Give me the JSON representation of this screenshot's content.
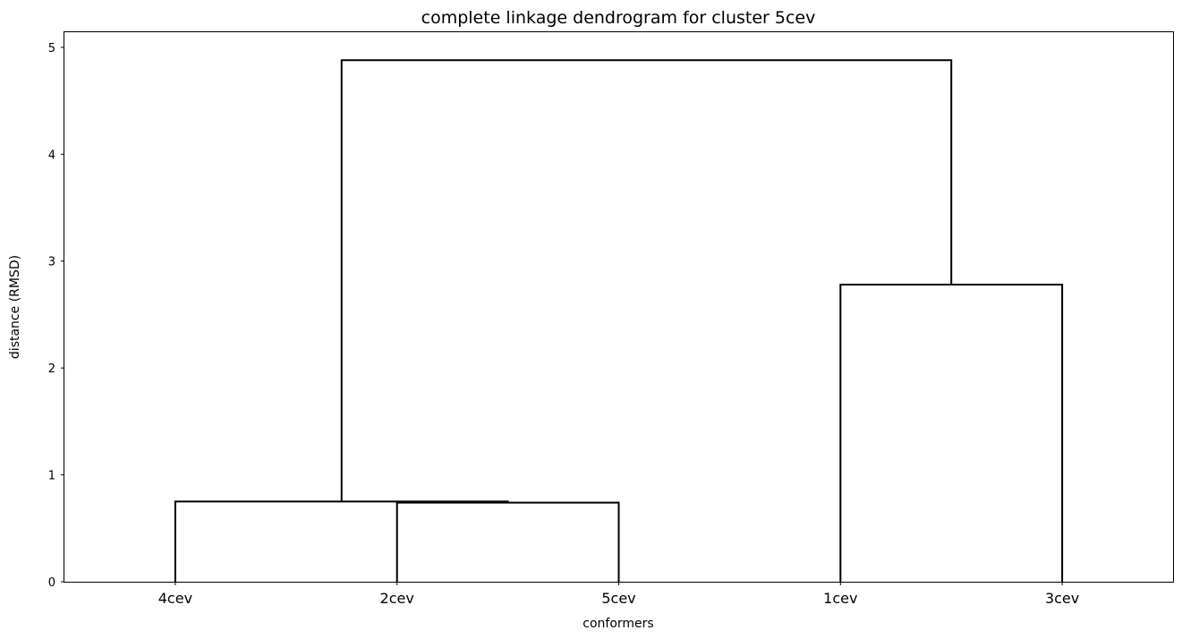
{
  "chart_data": {
    "type": "dendrogram",
    "title": "complete linkage dendrogram for cluster 5cev",
    "xlabel": "conformers",
    "ylabel": "distance (RMSD)",
    "leaves": [
      "4cev",
      "2cev",
      "5cev",
      "1cev",
      "3cev"
    ],
    "ylim": [
      0,
      5.15
    ],
    "yticks": [
      0,
      1,
      2,
      3,
      4,
      5
    ],
    "links": [
      {
        "left": "2cev",
        "right": "5cev",
        "height": 0.74
      },
      {
        "left": "4cev",
        "right": "2cev+5cev",
        "height": 0.75
      },
      {
        "left": "1cev",
        "right": "3cev",
        "height": 2.78
      },
      {
        "left": "4cev+2cev+5cev",
        "right": "1cev+3cev",
        "height": 4.88
      }
    ],
    "line_color": "#000000",
    "grid": false
  }
}
